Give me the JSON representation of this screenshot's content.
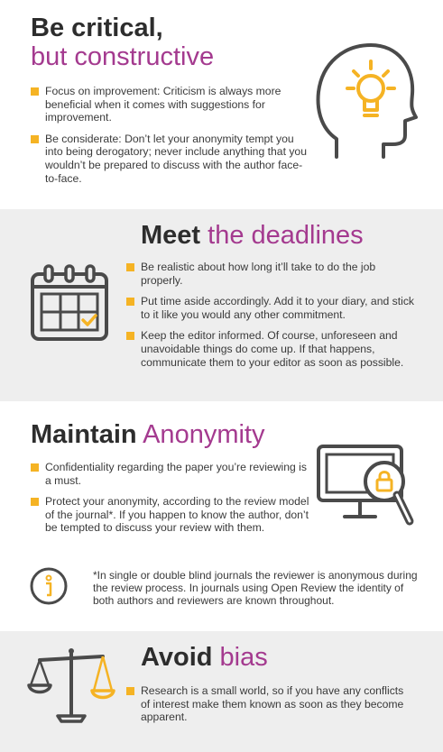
{
  "sec1": {
    "title_bold": "Be critical,",
    "title_light": "but constructive",
    "bullets": [
      "Focus on improvement: Criticism is always more beneficial when it comes with suggestions for improvement.",
      "Be considerate: Don’t let your anonymity tempt you into being derogatory; never include anything that you wouldn’t be prepared to discuss with the author face-to-face."
    ],
    "icon": "head-lightbulb-icon"
  },
  "sec2": {
    "title_bold": "Meet",
    "title_light": "the deadlines",
    "bullets": [
      "Be realistic about how long it’ll take to do the job properly.",
      "Put time aside accordingly. Add it to your diary, and stick to it like you would any other commitment.",
      "Keep the editor informed. Of course, unforeseen and unavoidable things do come up. If that happens, communicate them to your editor as soon as possible."
    ],
    "icon": "calendar-icon"
  },
  "sec3": {
    "title_bold": "Maintain",
    "title_light": "Anonymity",
    "bullets": [
      "Confidentiality regarding the paper you’re reviewing is a must.",
      "Protect your anonymity, according to the review model of the journal*. If you happen to know the author, don’t be tempted to discuss your review with them."
    ],
    "note": "*In single or double blind journals the reviewer is anonymous during the review process. In journals using Open Review the identity of both authors and reviewers are known throughout.",
    "icon": "monitor-lock-magnifier-icon",
    "note_icon": "info-icon"
  },
  "sec4": {
    "title_bold": "Avoid",
    "title_light": "bias",
    "bullets": [
      "Research is a small world, so if you have any conflicts of interest make them known as soon as they become apparent."
    ],
    "icon": "scales-icon"
  },
  "colors": {
    "accent": "#f5b324",
    "purple": "#a43a8f",
    "text": "#3a3a3a",
    "panel": "#eeeeee"
  }
}
